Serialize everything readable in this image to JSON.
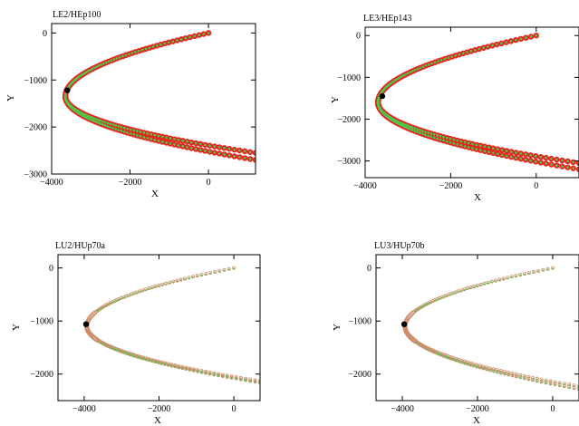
{
  "figure": {
    "background": "#ffffff"
  },
  "colors": {
    "trajectory_outline": "#e8231f",
    "trajectory_core": "#4fc64a",
    "hollow_marker": "#cc8f6e",
    "reference_point": "#000000",
    "axes": "#000000"
  },
  "chart_data": [
    {
      "type": "scatter",
      "title": "LE2/HEp100",
      "xlabel": "X",
      "ylabel": "Y",
      "xlim": [
        -4000,
        1200
      ],
      "ylim": [
        -3000,
        200
      ],
      "xticks": [
        -4000,
        -2000,
        0
      ],
      "yticks": [
        -3000,
        -2000,
        -1000,
        0
      ],
      "grid": false,
      "marker_style": "dense-filled",
      "branch_ends": [
        [
          1200,
          -2550
        ],
        [
          1200,
          -2700
        ]
      ],
      "apex": [
        -3650,
        -1350
      ],
      "reference_point": [
        -3600,
        -1220
      ]
    },
    {
      "type": "scatter",
      "title": "LE3/HEp143",
      "xlabel": "X",
      "ylabel": "Y",
      "xlim": [
        -4000,
        1000
      ],
      "ylim": [
        -3400,
        200
      ],
      "xticks": [
        -4000,
        -2000,
        0
      ],
      "yticks": [
        -3000,
        -2000,
        -1000,
        0
      ],
      "grid": false,
      "marker_style": "dense-filled",
      "branch_ends": [
        [
          1000,
          -3050
        ],
        [
          1000,
          -3200
        ]
      ],
      "apex": [
        -3700,
        -1600
      ],
      "reference_point": [
        -3600,
        -1450
      ]
    },
    {
      "type": "scatter",
      "title": "LU2/HUp70a",
      "xlabel": "X",
      "ylabel": "Y",
      "xlim": [
        -4700,
        700
      ],
      "ylim": [
        -2500,
        250
      ],
      "xticks": [
        -4000,
        -2000,
        0
      ],
      "yticks": [
        -2000,
        -1000,
        0
      ],
      "grid": false,
      "marker_style": "hollow-sparse-apex",
      "branch_ends": [
        [
          700,
          -2130
        ],
        [
          700,
          -2160
        ]
      ],
      "apex": [
        -3930,
        -1100
      ],
      "reference_point": [
        -3950,
        -1060
      ]
    },
    {
      "type": "scatter",
      "title": "LU3/HUp70b",
      "xlabel": "X",
      "ylabel": "Y",
      "xlim": [
        -4700,
        700
      ],
      "ylim": [
        -2500,
        250
      ],
      "xticks": [
        -4000,
        -2000,
        0
      ],
      "yticks": [
        -2000,
        -1000,
        0
      ],
      "grid": false,
      "marker_style": "hollow-sparse-apex",
      "branch_ends": [
        [
          700,
          -2230
        ],
        [
          700,
          -2280
        ]
      ],
      "apex": [
        -3930,
        -1100
      ],
      "reference_point": [
        -3950,
        -1060
      ]
    }
  ]
}
